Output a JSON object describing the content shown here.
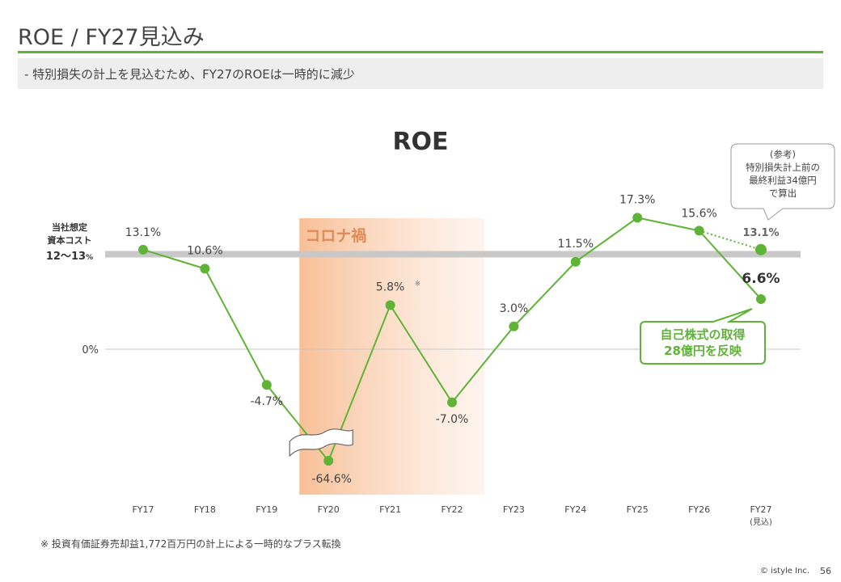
{
  "header": {
    "title": "ROE / FY27見込み",
    "subtitle": "-  特別損失の計上を見込むため、FY27のROEは一時的に減少"
  },
  "chart_data": {
    "type": "line",
    "title": "ROE",
    "categories": [
      "FY17",
      "FY18",
      "FY19",
      "FY20",
      "FY21",
      "FY22",
      "FY23",
      "FY24",
      "FY25",
      "FY26",
      "FY27"
    ],
    "category_sublabels": [
      "",
      "",
      "",
      "",
      "",
      "",
      "",
      "",
      "",
      "",
      "(見込)"
    ],
    "series": [
      {
        "values": [
          13.1,
          10.6,
          -4.7,
          -64.6,
          5.8,
          -7.0,
          3.0,
          11.5,
          17.3,
          15.6,
          6.6
        ],
        "labels": [
          "13.1%",
          "10.6%",
          "-4.7%",
          "-64.6%",
          "5.8%",
          "-7.0%",
          "3.0%",
          "11.5%",
          "17.3%",
          "15.6%",
          "6.6%"
        ],
        "color": "#5fb336"
      },
      {
        "values": [
          null,
          null,
          null,
          null,
          null,
          null,
          null,
          null,
          null,
          15.6,
          13.1
        ],
        "labels": [
          "",
          "",
          "",
          "",
          "",
          "",
          "",
          "",
          "",
          "",
          "13.1%"
        ],
        "color": "#5fb336",
        "style": "dotted"
      }
    ],
    "y_tick_label": "0%",
    "axis_break": "FY20 value (-64.6%) shown with a broken axis",
    "band": {
      "from": "FY20",
      "to": "FY22",
      "label": "コロナ禍",
      "color": "#f8c09a"
    },
    "cost_of_capital": {
      "label_line1": "当社想定",
      "label_line2": "資本コスト",
      "label_line3": "12〜13",
      "label_unit": "%",
      "low": 12,
      "high": 13
    },
    "annotations": {
      "fy21_mark": "※",
      "reference_callout": [
        "(参考)",
        "特別損失計上前の",
        "最終利益34億円",
        "で算出"
      ],
      "buyback_callout": [
        "自己株式の取得",
        "28億円を反映"
      ]
    },
    "grid": false
  },
  "footer": {
    "note": "※ 投資有価証券売却益1,772百万円の計上による一時的なプラス転換",
    "copyright": "© istyle Inc.",
    "page": "56"
  }
}
